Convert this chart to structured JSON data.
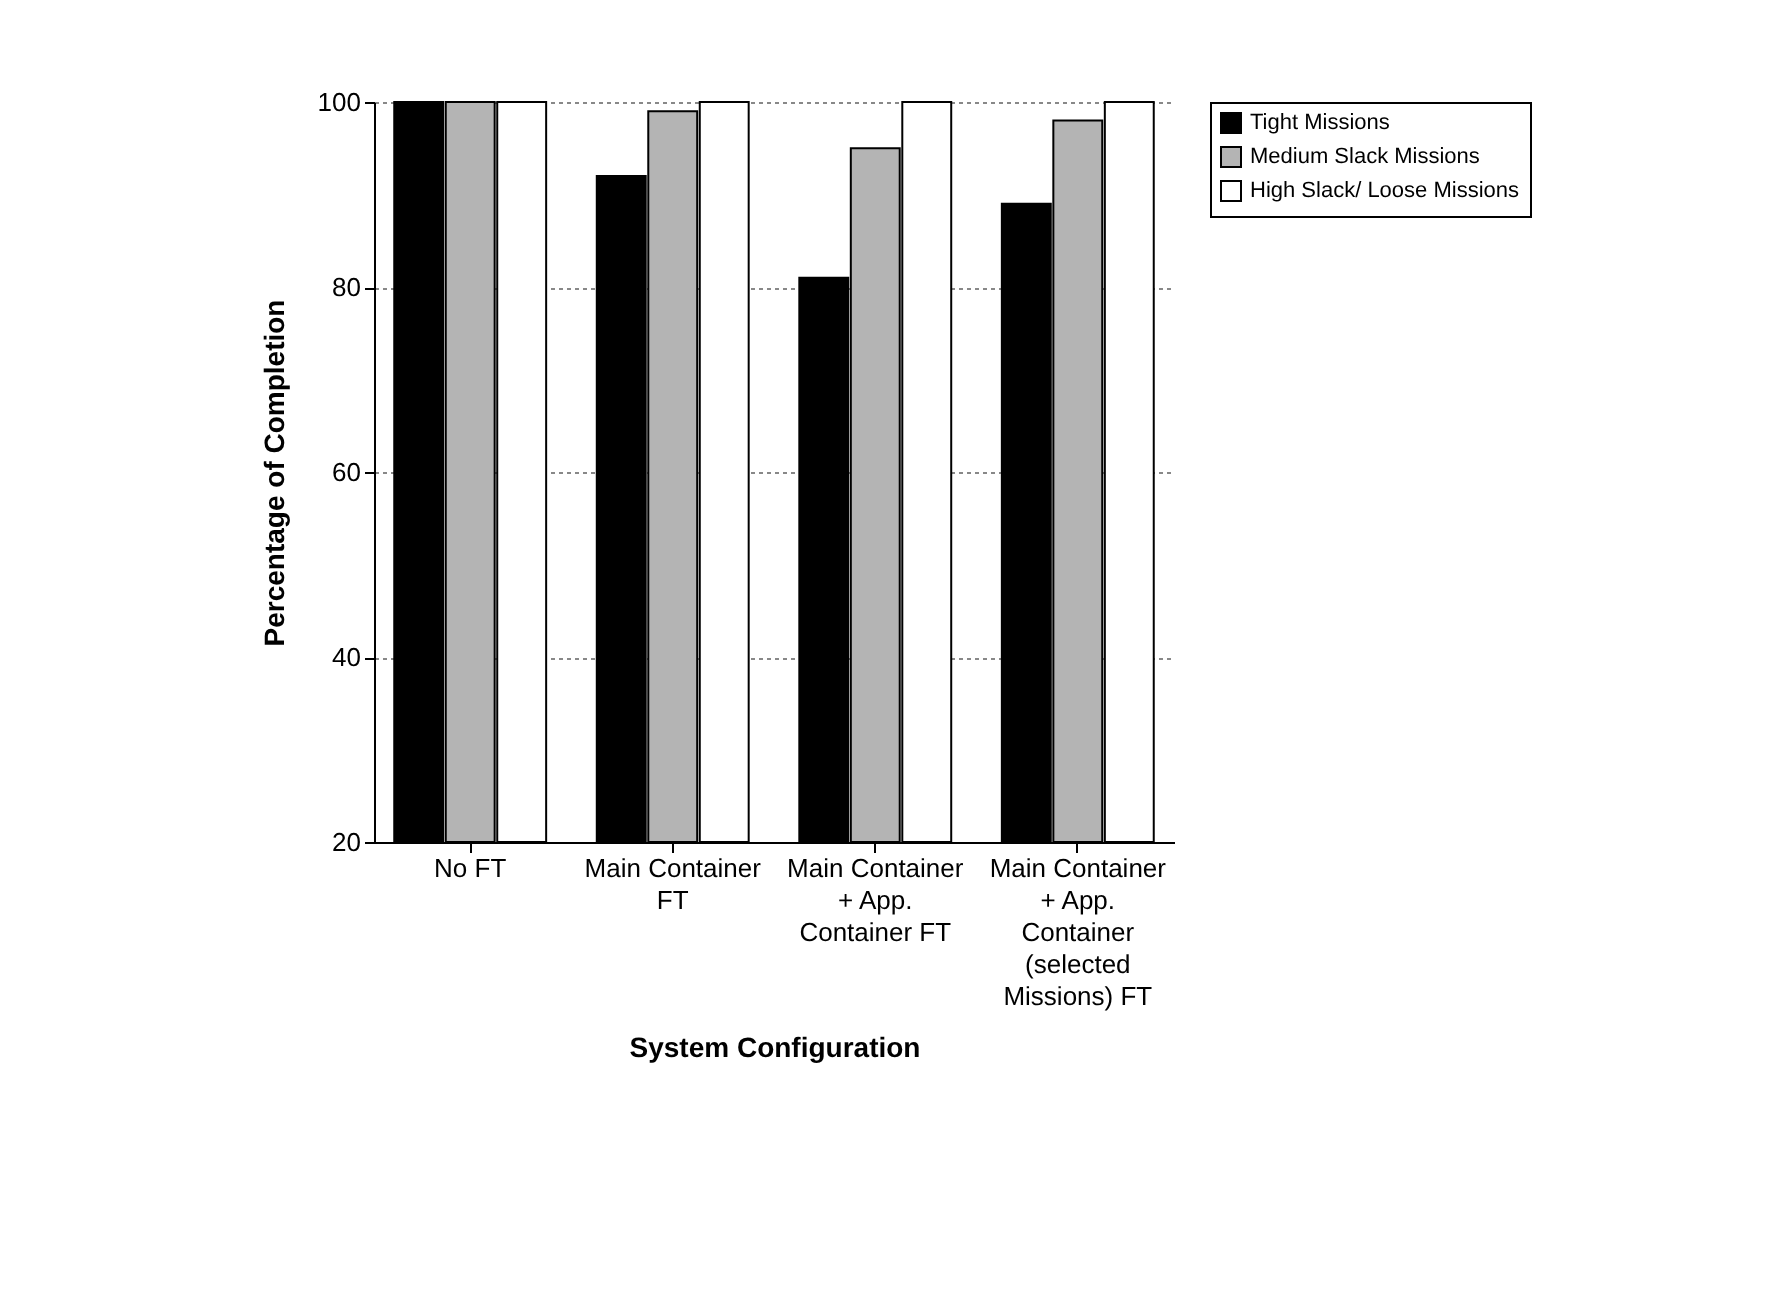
{
  "chart_data": {
    "type": "bar",
    "xlabel": "System Configuration",
    "ylabel": "Percentage of Completion",
    "categories": [
      "No FT",
      "Main Container FT",
      "Main Container + App. Container FT",
      "Main Container + App. Container (selected Missions) FT"
    ],
    "series": [
      {
        "name": "Tight Missions",
        "color": "#000000",
        "values": [
          100,
          92,
          81,
          89
        ]
      },
      {
        "name": "Medium Slack Missions",
        "color": "#b4b4b4",
        "values": [
          100,
          99,
          95,
          98
        ]
      },
      {
        "name": "High Slack/ Loose Missions",
        "color": "#ffffff",
        "values": [
          100,
          100,
          100,
          100
        ]
      }
    ],
    "ylim": [
      20,
      100
    ],
    "yticks": [
      20,
      40,
      60,
      80,
      100
    ],
    "grid": "y",
    "legend": "right"
  }
}
